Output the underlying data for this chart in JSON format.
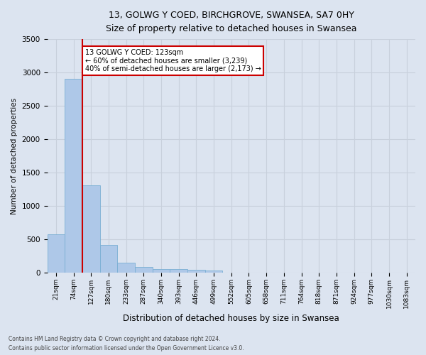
{
  "title_line1": "13, GOLWG Y COED, BIRCHGROVE, SWANSEA, SA7 0HY",
  "title_line2": "Size of property relative to detached houses in Swansea",
  "xlabel": "Distribution of detached houses by size in Swansea",
  "ylabel": "Number of detached properties",
  "bin_labels": [
    "21sqm",
    "74sqm",
    "127sqm",
    "180sqm",
    "233sqm",
    "287sqm",
    "340sqm",
    "393sqm",
    "446sqm",
    "499sqm",
    "552sqm",
    "605sqm",
    "658sqm",
    "711sqm",
    "764sqm",
    "818sqm",
    "871sqm",
    "924sqm",
    "977sqm",
    "1030sqm",
    "1083sqm"
  ],
  "bar_values": [
    570,
    2900,
    1310,
    410,
    150,
    80,
    55,
    50,
    40,
    35,
    0,
    0,
    0,
    0,
    0,
    0,
    0,
    0,
    0,
    0,
    0
  ],
  "bar_color": "#aec8e8",
  "bar_edge_color": "#7aafd4",
  "red_line_bin_index": 2,
  "annotation_text": "13 GOLWG Y COED: 123sqm\n← 60% of detached houses are smaller (3,239)\n40% of semi-detached houses are larger (2,173) →",
  "annotation_box_color": "#ffffff",
  "annotation_border_color": "#cc0000",
  "grid_color": "#c8d0dc",
  "background_color": "#dce4f0",
  "ylim": [
    0,
    3500
  ],
  "footer_line1": "Contains HM Land Registry data © Crown copyright and database right 2024.",
  "footer_line2": "Contains public sector information licensed under the Open Government Licence v3.0."
}
